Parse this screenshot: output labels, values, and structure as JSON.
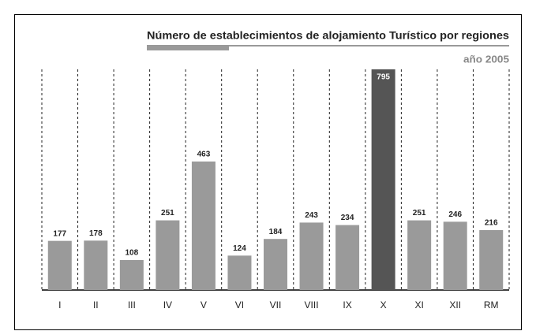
{
  "chart_data": {
    "type": "bar",
    "title": "Número de establecimientos de alojamiento Turístico por regiones",
    "subtitle": "año 2005",
    "categories": [
      "I",
      "II",
      "III",
      "IV",
      "V",
      "VI",
      "VII",
      "VIII",
      "IX",
      "X",
      "XI",
      "XII",
      "RM"
    ],
    "values": [
      177,
      178,
      108,
      251,
      463,
      124,
      184,
      243,
      234,
      795,
      251,
      246,
      216
    ],
    "colors": [
      "#9a9a9a",
      "#9a9a9a",
      "#9a9a9a",
      "#9a9a9a",
      "#9a9a9a",
      "#9a9a9a",
      "#9a9a9a",
      "#9a9a9a",
      "#9a9a9a",
      "#555555",
      "#9a9a9a",
      "#9a9a9a",
      "#9a9a9a"
    ]
  }
}
